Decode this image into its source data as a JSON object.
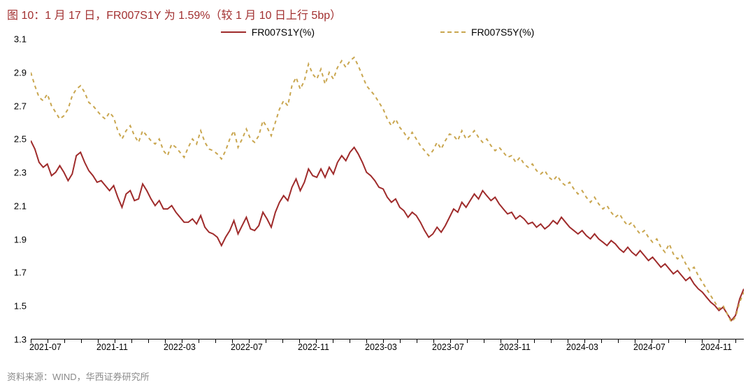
{
  "title": "图 10：1 月 17 日，FR007S1Y 为 1.59%（较 1 月 10 日上行 5bp）",
  "source": "资料来源：WIND，华西证券研究所",
  "legend": {
    "series1": "FR007S1Y(%)",
    "series2": "FR007S5Y(%)"
  },
  "chart": {
    "type": "line",
    "background_color": "#ffffff",
    "title_color": "#a23030",
    "axis_color": "#000000",
    "label_fontsize": 13,
    "ylim": [
      1.3,
      3.1
    ],
    "ytick_step": 0.2,
    "yticks": [
      1.3,
      1.5,
      1.7,
      1.9,
      2.1,
      2.3,
      2.5,
      2.7,
      2.9,
      3.1
    ],
    "x_start": "2021-07",
    "x_end": "2025-01",
    "x_labels": [
      "2021-07",
      "2021-11",
      "2022-03",
      "2022-07",
      "2022-11",
      "2023-03",
      "2023-07",
      "2023-11",
      "2024-03",
      "2024-07",
      "2024-11"
    ],
    "x_label_months": [
      0,
      4,
      8,
      12,
      16,
      20,
      24,
      28,
      32,
      36,
      40
    ],
    "x_tick_minor_months": [
      0,
      1,
      2,
      3,
      4,
      5,
      6,
      7,
      8,
      9,
      10,
      11,
      12,
      13,
      14,
      15,
      16,
      17,
      18,
      19,
      20,
      21,
      22,
      23,
      24,
      25,
      26,
      27,
      28,
      29,
      30,
      31,
      32,
      33,
      34,
      35,
      36,
      37,
      38,
      39,
      40,
      41,
      42
    ],
    "x_total_months": 42.5,
    "series": [
      {
        "name": "FR007S1Y",
        "color": "#9f2b2b",
        "line_width": 2,
        "dash": "solid",
        "data": [
          2.49,
          2.44,
          2.36,
          2.33,
          2.35,
          2.28,
          2.3,
          2.34,
          2.3,
          2.25,
          2.29,
          2.4,
          2.42,
          2.36,
          2.31,
          2.28,
          2.24,
          2.25,
          2.22,
          2.19,
          2.22,
          2.15,
          2.09,
          2.17,
          2.19,
          2.13,
          2.14,
          2.23,
          2.19,
          2.14,
          2.1,
          2.13,
          2.08,
          2.08,
          2.1,
          2.06,
          2.03,
          2.0,
          2.0,
          2.02,
          1.99,
          2.04,
          1.97,
          1.94,
          1.93,
          1.91,
          1.86,
          1.91,
          1.95,
          2.01,
          1.93,
          1.98,
          2.03,
          1.96,
          1.95,
          1.98,
          2.06,
          2.02,
          1.97,
          2.06,
          2.12,
          2.16,
          2.13,
          2.21,
          2.26,
          2.19,
          2.24,
          2.32,
          2.28,
          2.27,
          2.32,
          2.27,
          2.33,
          2.29,
          2.36,
          2.4,
          2.37,
          2.42,
          2.45,
          2.41,
          2.36,
          2.3,
          2.28,
          2.25,
          2.21,
          2.2,
          2.15,
          2.12,
          2.14,
          2.09,
          2.07,
          2.03,
          2.06,
          2.04,
          2.0,
          1.95,
          1.91,
          1.93,
          1.97,
          1.94,
          1.98,
          2.03,
          2.08,
          2.06,
          2.12,
          2.09,
          2.13,
          2.17,
          2.14,
          2.19,
          2.16,
          2.13,
          2.15,
          2.11,
          2.08,
          2.05,
          2.06,
          2.02,
          2.04,
          2.02,
          1.99,
          2.0,
          1.97,
          1.99,
          1.96,
          1.98,
          2.01,
          1.99,
          2.03,
          2.0,
          1.97,
          1.95,
          1.93,
          1.95,
          1.92,
          1.9,
          1.93,
          1.9,
          1.88,
          1.86,
          1.89,
          1.87,
          1.84,
          1.82,
          1.85,
          1.82,
          1.8,
          1.83,
          1.8,
          1.77,
          1.79,
          1.76,
          1.73,
          1.75,
          1.72,
          1.69,
          1.71,
          1.68,
          1.65,
          1.67,
          1.63,
          1.6,
          1.58,
          1.55,
          1.52,
          1.5,
          1.47,
          1.49,
          1.45,
          1.41,
          1.44,
          1.54,
          1.6
        ]
      },
      {
        "name": "FR007S5Y",
        "color": "#c9a64f",
        "line_width": 2,
        "dash": "5,5",
        "data": [
          2.9,
          2.82,
          2.75,
          2.73,
          2.77,
          2.7,
          2.66,
          2.62,
          2.64,
          2.68,
          2.76,
          2.8,
          2.82,
          2.78,
          2.72,
          2.7,
          2.67,
          2.64,
          2.62,
          2.66,
          2.63,
          2.55,
          2.5,
          2.55,
          2.58,
          2.52,
          2.48,
          2.55,
          2.52,
          2.49,
          2.47,
          2.5,
          2.43,
          2.4,
          2.47,
          2.45,
          2.42,
          2.39,
          2.45,
          2.5,
          2.47,
          2.55,
          2.48,
          2.44,
          2.43,
          2.41,
          2.38,
          2.43,
          2.5,
          2.55,
          2.45,
          2.5,
          2.56,
          2.5,
          2.48,
          2.52,
          2.61,
          2.57,
          2.52,
          2.6,
          2.68,
          2.73,
          2.7,
          2.82,
          2.87,
          2.8,
          2.85,
          2.95,
          2.89,
          2.86,
          2.92,
          2.83,
          2.9,
          2.86,
          2.93,
          2.97,
          2.93,
          2.97,
          2.99,
          2.94,
          2.88,
          2.82,
          2.79,
          2.76,
          2.72,
          2.68,
          2.62,
          2.58,
          2.62,
          2.57,
          2.54,
          2.5,
          2.54,
          2.5,
          2.46,
          2.43,
          2.4,
          2.43,
          2.48,
          2.44,
          2.49,
          2.53,
          2.52,
          2.49,
          2.55,
          2.5,
          2.52,
          2.55,
          2.51,
          2.48,
          2.5,
          2.46,
          2.43,
          2.45,
          2.42,
          2.39,
          2.4,
          2.36,
          2.39,
          2.35,
          2.33,
          2.35,
          2.31,
          2.29,
          2.31,
          2.27,
          2.25,
          2.28,
          2.24,
          2.22,
          2.24,
          2.2,
          2.17,
          2.19,
          2.15,
          2.12,
          2.15,
          2.11,
          2.08,
          2.1,
          2.06,
          2.03,
          2.05,
          2.01,
          1.98,
          2.0,
          1.96,
          1.93,
          1.95,
          1.91,
          1.88,
          1.9,
          1.85,
          1.82,
          1.87,
          1.81,
          1.78,
          1.8,
          1.75,
          1.71,
          1.73,
          1.68,
          1.64,
          1.6,
          1.56,
          1.52,
          1.48,
          1.5,
          1.45,
          1.4,
          1.43,
          1.52,
          1.58
        ]
      }
    ]
  }
}
